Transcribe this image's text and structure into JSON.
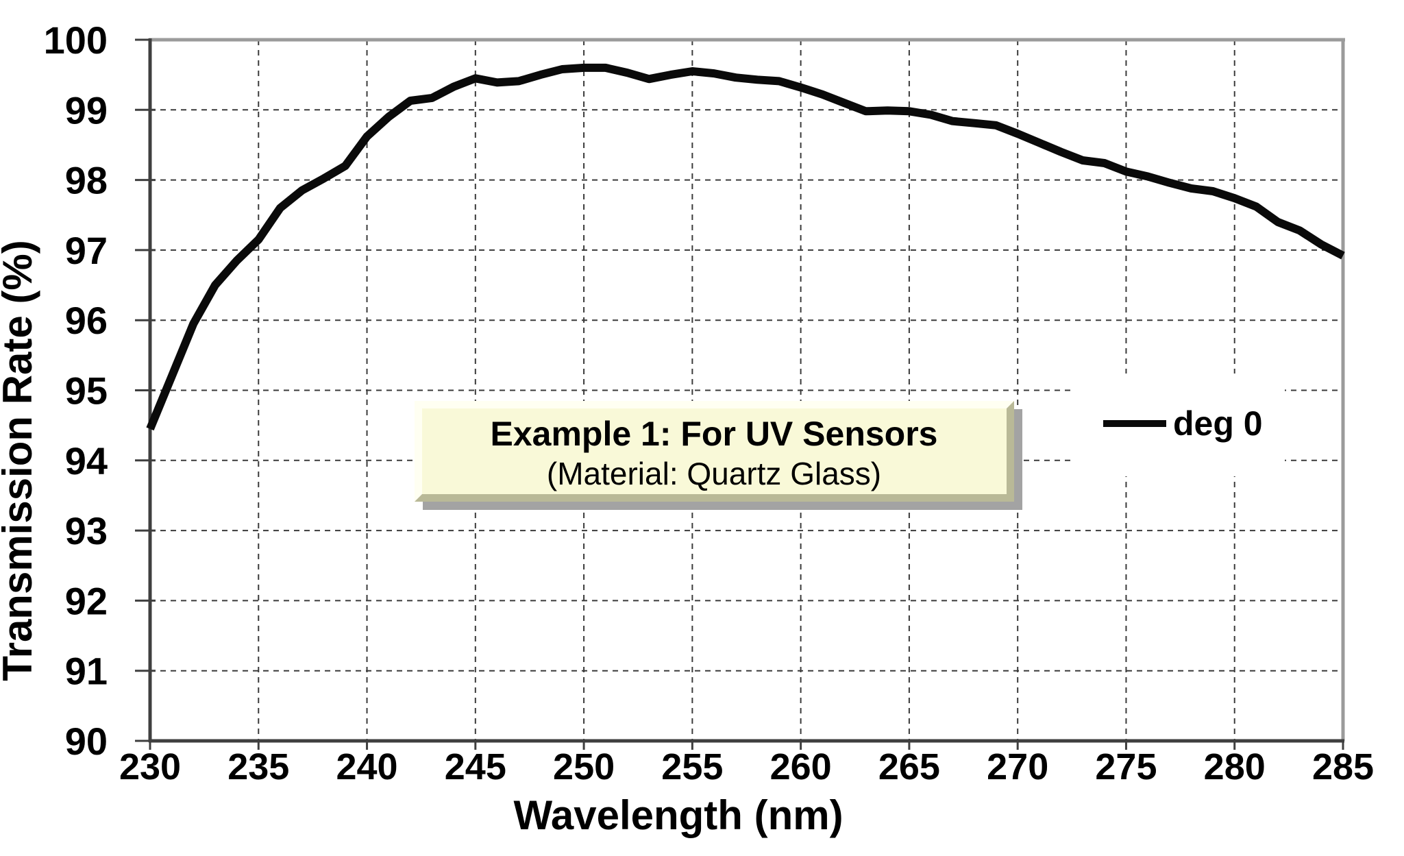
{
  "chart_data": {
    "type": "line",
    "title": "",
    "xlabel": "Wavelength (nm)",
    "ylabel": "Transmission Rate (%)",
    "xlim": [
      230,
      285
    ],
    "ylim": [
      90,
      100
    ],
    "x_ticks": [
      230,
      235,
      240,
      245,
      250,
      255,
      260,
      265,
      270,
      275,
      280,
      285
    ],
    "y_ticks": [
      90,
      91,
      92,
      93,
      94,
      95,
      96,
      97,
      98,
      99,
      100
    ],
    "grid": true,
    "legend_position": "middle-right",
    "series": [
      {
        "name": "deg 0",
        "color": "#0a0a0a",
        "x": [
          230,
          231,
          232,
          233,
          234,
          235,
          236,
          237,
          238,
          239,
          240,
          241,
          242,
          243,
          244,
          245,
          246,
          247,
          248,
          249,
          250,
          251,
          252,
          253,
          254,
          255,
          256,
          257,
          258,
          259,
          260,
          261,
          262,
          263,
          264,
          265,
          266,
          267,
          268,
          269,
          270,
          271,
          272,
          273,
          274,
          275,
          276,
          277,
          278,
          279,
          280,
          281,
          282,
          283,
          284,
          285
        ],
        "values": [
          94.45,
          95.2,
          95.95,
          96.5,
          96.85,
          97.15,
          97.6,
          97.85,
          98.02,
          98.2,
          98.62,
          98.9,
          99.13,
          99.17,
          99.33,
          99.45,
          99.39,
          99.41,
          99.5,
          99.58,
          99.6,
          99.6,
          99.53,
          99.44,
          99.5,
          99.55,
          99.52,
          99.46,
          99.43,
          99.41,
          99.32,
          99.22,
          99.1,
          98.98,
          98.99,
          98.98,
          98.93,
          98.84,
          98.81,
          98.78,
          98.66,
          98.53,
          98.4,
          98.28,
          98.24,
          98.12,
          98.05,
          97.96,
          97.88,
          97.84,
          97.74,
          97.62,
          97.4,
          97.28,
          97.08,
          96.92
        ]
      }
    ],
    "annotation": {
      "line1": "Example 1: For UV Sensors",
      "line2": "(Material: Quartz Glass)"
    }
  },
  "legend": {
    "label": "deg 0"
  },
  "appearance": {
    "line_color": "#0a0a0a",
    "grid_color": "#3a3a3a",
    "frame_light": "#9b9b9b",
    "frame_dark": "#3f3f3f",
    "box_fill": "#f9f9d8",
    "box_bevel_light": "#fffff2",
    "box_bevel_dark": "#b9b997",
    "box_shadow": "#a3a3a3",
    "legend_bg": "#ffffff",
    "text_color": "#000000",
    "background": "#ffffff"
  }
}
